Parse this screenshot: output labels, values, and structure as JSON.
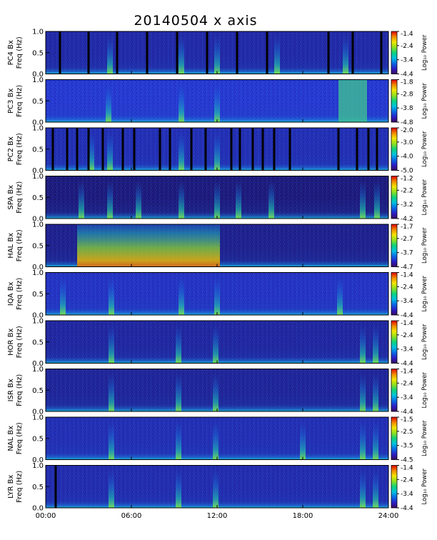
{
  "title": "20140504  x axis",
  "chart_data": {
    "type": "heatmap",
    "title": "20140504  x axis",
    "xlabel": "",
    "x_ticks": [
      "00:00",
      "06:00",
      "12:00",
      "18:00",
      "24:00"
    ],
    "x_range_hours": [
      0,
      24
    ],
    "y_range_hz": [
      0,
      1.0
    ],
    "y_ticks": [
      "0.0",
      "0.5",
      "1.0"
    ],
    "colorbar_label": "Log₁₀ Power",
    "colormap": [
      "#3a0a5e",
      "#2a1ec8",
      "#0a6be6",
      "#00c2e0",
      "#10d27a",
      "#8fe020",
      "#f2e600",
      "#f28a00",
      "#e00000"
    ],
    "series": [
      {
        "name": "PC4 Bx",
        "ylabel": "Freq (Hz)",
        "cbar_ticks": [
          "-1.4",
          "-2.4",
          "-3.4",
          "-4.4"
        ],
        "cbar_range": [
          -4.4,
          -1.4
        ],
        "background_level": 0.22,
        "bursts_hours": [
          4.5,
          9.5,
          12.0,
          16.2,
          21.0
        ],
        "gaps_hours": [
          1.0,
          3.0,
          5.0,
          7.1,
          9.2,
          11.3,
          13.4,
          15.5,
          19.8,
          21.5,
          23.5
        ]
      },
      {
        "name": "PC3 Bx",
        "ylabel": "Freq (Hz)",
        "cbar_ticks": [
          "-1.8",
          "-2.8",
          "-3.8",
          "-4.8"
        ],
        "cbar_range": [
          -4.8,
          -1.8
        ],
        "background_level": 0.34,
        "bursts_hours": [
          4.4,
          9.5,
          12.0
        ],
        "bright_band_hours": [
          20.5,
          22.5
        ],
        "gaps_hours": []
      },
      {
        "name": "PC2 Bx",
        "ylabel": "Freq (Hz)",
        "cbar_ticks": [
          "-2.0",
          "-3.0",
          "-4.0",
          "-5.0"
        ],
        "cbar_range": [
          -5.0,
          -2.0
        ],
        "background_level": 0.26,
        "bursts_hours": [
          3.2,
          4.5,
          9.5,
          12.0
        ],
        "gaps_hours": [
          0.5,
          1.5,
          2.2,
          3.0,
          4.0,
          5.4,
          6.2,
          8.0,
          8.7,
          10.2,
          11.2,
          13.0,
          13.6,
          14.5,
          15.2,
          16.0,
          17.1,
          20.5,
          21.8,
          22.6,
          23.2
        ]
      },
      {
        "name": "SPA Bx",
        "ylabel": "Freq (Hz)",
        "cbar_ticks": [
          "-1.2",
          "-2.2",
          "-3.2",
          "-4.2"
        ],
        "cbar_range": [
          -4.2,
          -1.2
        ],
        "background_level": 0.1,
        "bursts_hours": [
          2.5,
          4.5,
          6.5,
          9.5,
          12.0,
          13.5,
          15.8,
          22.2,
          23.2
        ],
        "gaps_hours": []
      },
      {
        "name": "HAL Bx",
        "ylabel": "Freq (Hz)",
        "cbar_ticks": [
          "-1.7",
          "-2.7",
          "-3.7",
          "-4.7"
        ],
        "cbar_range": [
          -4.7,
          -1.7
        ],
        "background_level": 0.15,
        "hot_region_hours": [
          2.2,
          12.2
        ],
        "gaps_hours": []
      },
      {
        "name": "IQA Bx",
        "ylabel": "Freq (Hz)",
        "cbar_ticks": [
          "-1.4",
          "-2.4",
          "-3.4",
          "-4.4"
        ],
        "cbar_range": [
          -4.4,
          -1.4
        ],
        "background_level": 0.3,
        "bursts_hours": [
          1.2,
          4.6,
          9.5,
          12.0,
          20.6
        ],
        "gaps_hours": []
      },
      {
        "name": "HOR Bx",
        "ylabel": "Freq (Hz)",
        "cbar_ticks": [
          "-1.4",
          "-2.4",
          "-3.4",
          "-4.4"
        ],
        "cbar_range": [
          -4.4,
          -1.4
        ],
        "background_level": 0.2,
        "bursts_hours": [
          4.6,
          9.3,
          11.9,
          22.2,
          23.1
        ],
        "gaps_hours": []
      },
      {
        "name": "ISR Bx",
        "ylabel": "Freq (Hz)",
        "cbar_ticks": [
          "-1.4",
          "-2.4",
          "-3.4",
          "-4.4"
        ],
        "cbar_range": [
          -4.4,
          -1.4
        ],
        "background_level": 0.18,
        "bursts_hours": [
          4.6,
          9.3,
          11.9,
          22.2,
          23.1
        ],
        "gaps_hours": []
      },
      {
        "name": "NAL Bx",
        "ylabel": "Freq (Hz)",
        "cbar_ticks": [
          "-1.5",
          "-2.5",
          "-3.5",
          "-4.5"
        ],
        "cbar_range": [
          -4.5,
          -1.5
        ],
        "background_level": 0.26,
        "bursts_hours": [
          4.6,
          9.3,
          11.9,
          18.0,
          22.2,
          23.1
        ],
        "gaps_hours": []
      },
      {
        "name": "LYR Bx",
        "ylabel": "Freq (Hz)",
        "cbar_ticks": [
          "-1.4",
          "-2.4",
          "-3.4",
          "-4.4"
        ],
        "cbar_range": [
          -4.4,
          -1.4
        ],
        "background_level": 0.24,
        "bursts_hours": [
          4.6,
          9.3,
          11.9,
          22.2,
          23.1
        ],
        "gaps_hours": [
          0.7
        ]
      }
    ]
  }
}
